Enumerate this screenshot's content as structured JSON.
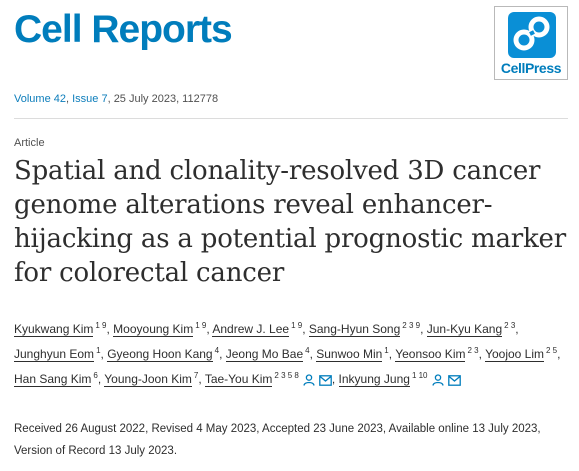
{
  "header": {
    "journal_title": "Cell Reports",
    "publisher_logo_text": "CellPress"
  },
  "citation": {
    "volume": "Volume 42",
    "issue": "Issue 7",
    "rest": ", 25 July 2023, 112778"
  },
  "article": {
    "type": "Article",
    "title": "Spatial and clonality-resolved 3D cancer genome alterations reveal enhancer-hijacking as a potential prognostic marker for colorectal cancer"
  },
  "authors": [
    {
      "name": "Kyukwang Kim",
      "affil": "1 9"
    },
    {
      "name": "Mooyoung Kim",
      "affil": "1 9"
    },
    {
      "name": "Andrew J. Lee",
      "affil": "1 9"
    },
    {
      "name": "Sang-Hyun Song",
      "affil": "2 3 9"
    },
    {
      "name": "Jun-Kyu Kang",
      "affil": "2 3"
    },
    {
      "name": "Junghyun Eom",
      "affil": "1"
    },
    {
      "name": "Gyeong Hoon Kang",
      "affil": "4"
    },
    {
      "name": "Jeong Mo Bae",
      "affil": "4"
    },
    {
      "name": "Sunwoo Min",
      "affil": "1"
    },
    {
      "name": "Yeonsoo Kim",
      "affil": "2 3"
    },
    {
      "name": "Yoojoo Lim",
      "affil": "2 5"
    },
    {
      "name": "Han Sang Kim",
      "affil": "6"
    },
    {
      "name": "Young-Joon Kim",
      "affil": "7"
    },
    {
      "name": "Tae-You Kim",
      "affil": "2 3 5 8",
      "icons": true
    },
    {
      "name": "Inkyung Jung",
      "affil": "1 10",
      "icons": true
    }
  ],
  "dates": {
    "text": "Received 26 August 2022, Revised 4 May 2023, Accepted 23 June 2023, Available online 13 July 2023, Version of Record 13 July 2023."
  },
  "icons": {
    "person": "person-icon",
    "mail": "mail-icon",
    "logo": "cellpress-logo-icon"
  },
  "colors": {
    "brand": "#007dbc",
    "text": "#2e2e2e"
  }
}
